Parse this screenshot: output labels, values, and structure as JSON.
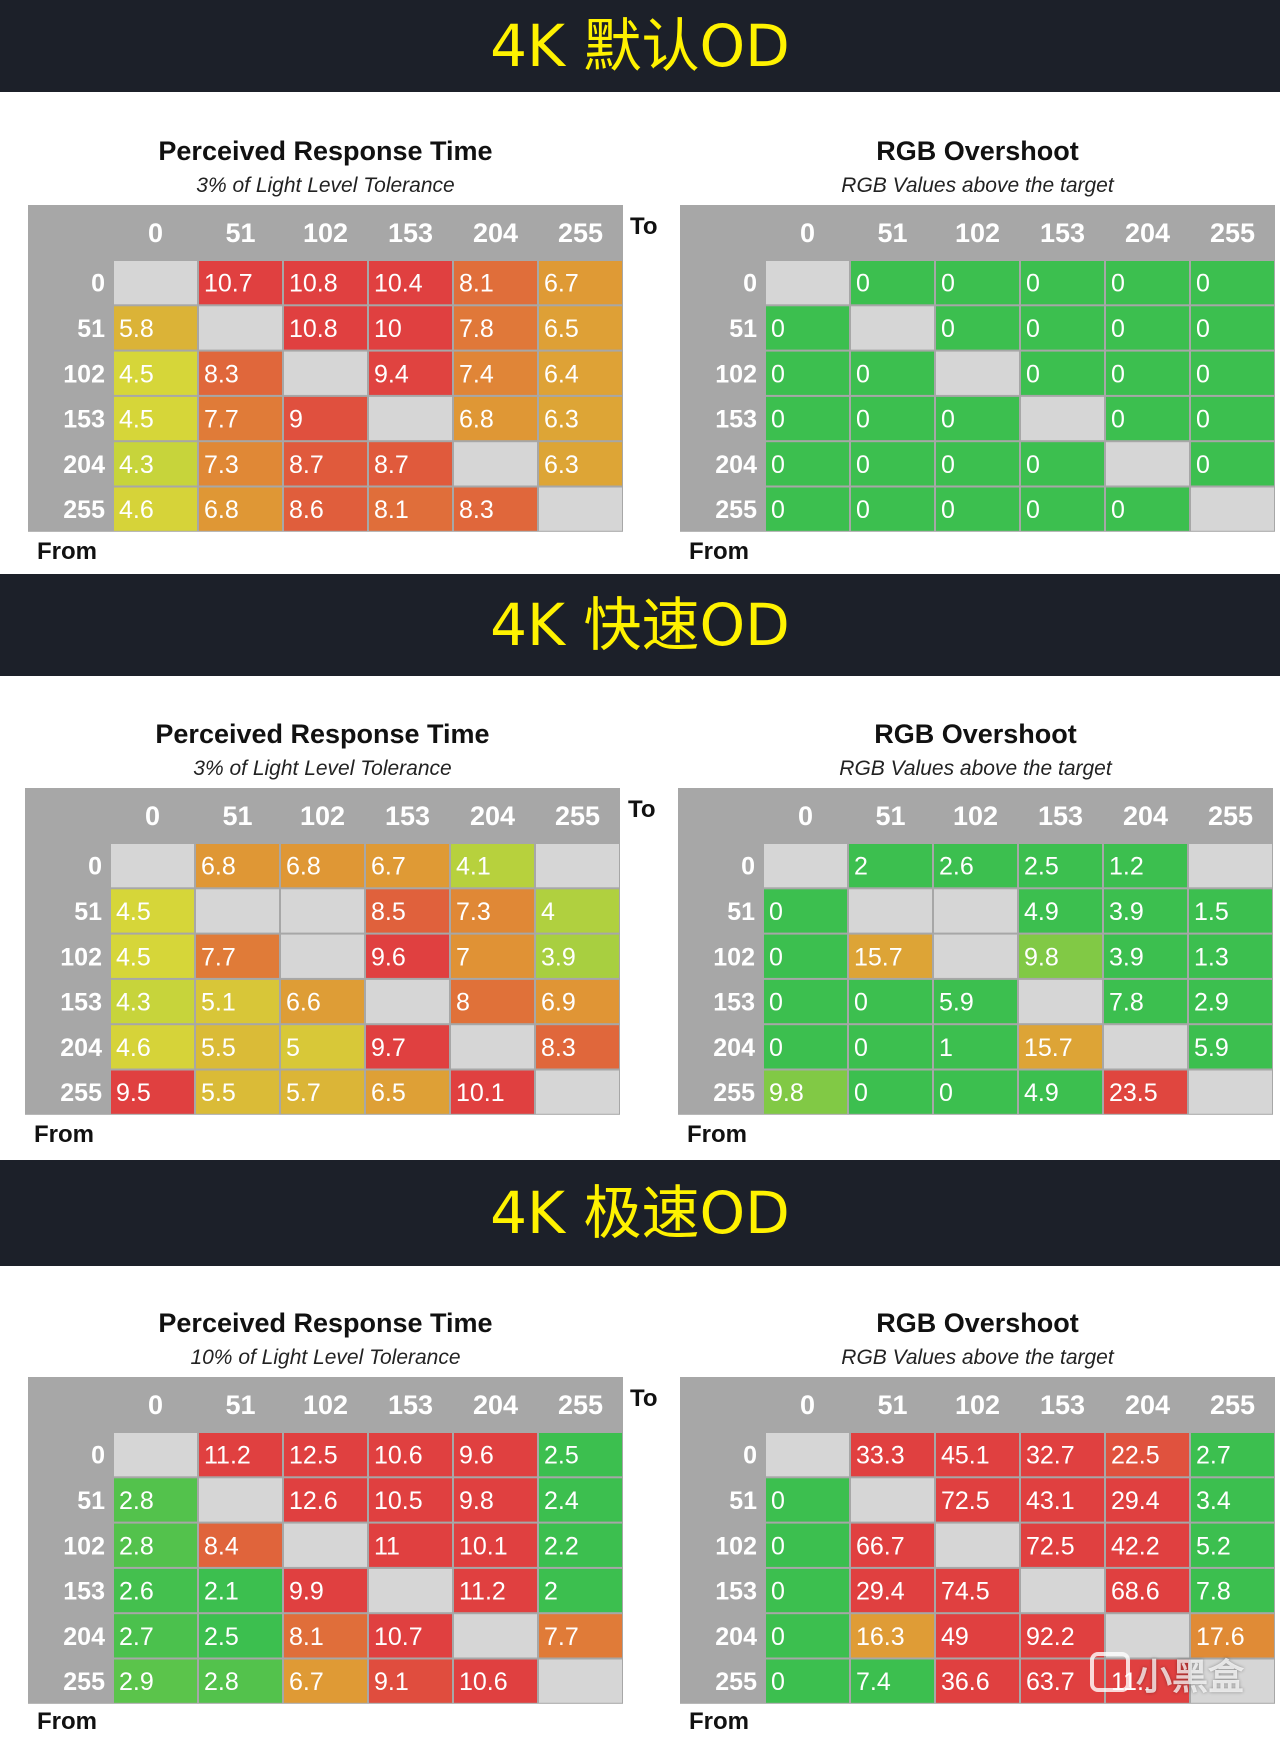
{
  "watermark": "小黑盒",
  "axis_labels": {
    "to": "To",
    "from": "From"
  },
  "sections": [
    {
      "banner": "4K 默认OD"
    },
    {
      "banner": "4K 快速OD"
    },
    {
      "banner": "4K 极速OD"
    }
  ],
  "colors": {
    "header_gray": "#a7a7a7",
    "diagonal_gray": "#d6d6d6",
    "green": "#3cbf4f",
    "yellow": "#d6d639",
    "orange": "#e09235",
    "red": "#e04040",
    "banner_bg": "#1c2029",
    "banner_text": "#fff200"
  },
  "chart_data": [
    {
      "type": "heatmap",
      "metric": "response",
      "title": "Perceived Response Time",
      "subtitle": "3% of Light Level Tolerance",
      "x": [
        "0",
        "51",
        "102",
        "153",
        "204",
        "255"
      ],
      "y": [
        "0",
        "51",
        "102",
        "153",
        "204",
        "255"
      ],
      "values": [
        [
          null,
          10.7,
          10.8,
          10.4,
          8.1,
          6.7
        ],
        [
          5.8,
          null,
          10.8,
          10,
          7.8,
          6.5
        ],
        [
          4.5,
          8.3,
          null,
          9.4,
          7.4,
          6.4
        ],
        [
          4.5,
          7.7,
          9,
          null,
          6.8,
          6.3
        ],
        [
          4.3,
          7.3,
          8.7,
          8.7,
          null,
          6.3
        ],
        [
          4.6,
          6.8,
          8.6,
          8.1,
          8.3,
          null
        ]
      ]
    },
    {
      "type": "heatmap",
      "metric": "overshoot",
      "title": "RGB Overshoot",
      "subtitle": "RGB Values above the target",
      "x": [
        "0",
        "51",
        "102",
        "153",
        "204",
        "255"
      ],
      "y": [
        "0",
        "51",
        "102",
        "153",
        "204",
        "255"
      ],
      "values": [
        [
          null,
          0,
          0,
          0,
          0,
          0
        ],
        [
          0,
          null,
          0,
          0,
          0,
          0
        ],
        [
          0,
          0,
          null,
          0,
          0,
          0
        ],
        [
          0,
          0,
          0,
          null,
          0,
          0
        ],
        [
          0,
          0,
          0,
          0,
          null,
          0
        ],
        [
          0,
          0,
          0,
          0,
          0,
          null
        ]
      ]
    },
    {
      "type": "heatmap",
      "metric": "response",
      "title": "Perceived Response Time",
      "subtitle": "3% of Light Level Tolerance",
      "x": [
        "0",
        "51",
        "102",
        "153",
        "204",
        "255"
      ],
      "y": [
        "0",
        "51",
        "102",
        "153",
        "204",
        "255"
      ],
      "values": [
        [
          null,
          6.8,
          6.8,
          6.7,
          4.1,
          null
        ],
        [
          4.5,
          null,
          null,
          8.5,
          7.3,
          4
        ],
        [
          4.5,
          7.7,
          null,
          9.6,
          7,
          3.9
        ],
        [
          4.3,
          5.1,
          6.6,
          null,
          8,
          6.9
        ],
        [
          4.6,
          5.5,
          5,
          9.7,
          null,
          8.3
        ],
        [
          9.5,
          5.5,
          5.7,
          6.5,
          10.1,
          null
        ]
      ]
    },
    {
      "type": "heatmap",
      "metric": "overshoot",
      "title": "RGB Overshoot",
      "subtitle": "RGB Values above the target",
      "x": [
        "0",
        "51",
        "102",
        "153",
        "204",
        "255"
      ],
      "y": [
        "0",
        "51",
        "102",
        "153",
        "204",
        "255"
      ],
      "values": [
        [
          null,
          2,
          2.6,
          2.5,
          1.2,
          null
        ],
        [
          0,
          null,
          null,
          4.9,
          3.9,
          1.5
        ],
        [
          0,
          15.7,
          null,
          9.8,
          3.9,
          1.3
        ],
        [
          0,
          0,
          5.9,
          null,
          7.8,
          2.9
        ],
        [
          0,
          0,
          1,
          15.7,
          null,
          5.9
        ],
        [
          9.8,
          0,
          0,
          4.9,
          23.5,
          null
        ]
      ]
    },
    {
      "type": "heatmap",
      "metric": "response",
      "title": "Perceived Response Time",
      "subtitle": "10% of Light Level Tolerance",
      "x": [
        "0",
        "51",
        "102",
        "153",
        "204",
        "255"
      ],
      "y": [
        "0",
        "51",
        "102",
        "153",
        "204",
        "255"
      ],
      "values": [
        [
          null,
          11.2,
          12.5,
          10.6,
          9.6,
          2.5
        ],
        [
          2.8,
          null,
          12.6,
          10.5,
          9.8,
          2.4
        ],
        [
          2.8,
          8.4,
          null,
          11,
          10.1,
          2.2
        ],
        [
          2.6,
          2.1,
          9.9,
          null,
          11.2,
          2
        ],
        [
          2.7,
          2.5,
          8.1,
          10.7,
          null,
          7.7
        ],
        [
          2.9,
          2.8,
          6.7,
          9.1,
          10.6,
          null
        ]
      ]
    },
    {
      "type": "heatmap",
      "metric": "overshoot",
      "title": "RGB Overshoot",
      "subtitle": "RGB Values above the target",
      "x": [
        "0",
        "51",
        "102",
        "153",
        "204",
        "255"
      ],
      "y": [
        "0",
        "51",
        "102",
        "153",
        "204",
        "255"
      ],
      "values": [
        [
          null,
          33.3,
          45.1,
          32.7,
          22.5,
          2.7
        ],
        [
          0,
          null,
          72.5,
          43.1,
          29.4,
          3.4
        ],
        [
          0,
          66.7,
          null,
          72.5,
          42.2,
          5.2
        ],
        [
          0,
          29.4,
          74.5,
          null,
          68.6,
          7.8
        ],
        [
          0,
          16.3,
          49,
          92.2,
          null,
          17.6
        ],
        [
          0,
          7.4,
          36.6,
          63.7,
          "11..",
          null
        ]
      ]
    }
  ]
}
